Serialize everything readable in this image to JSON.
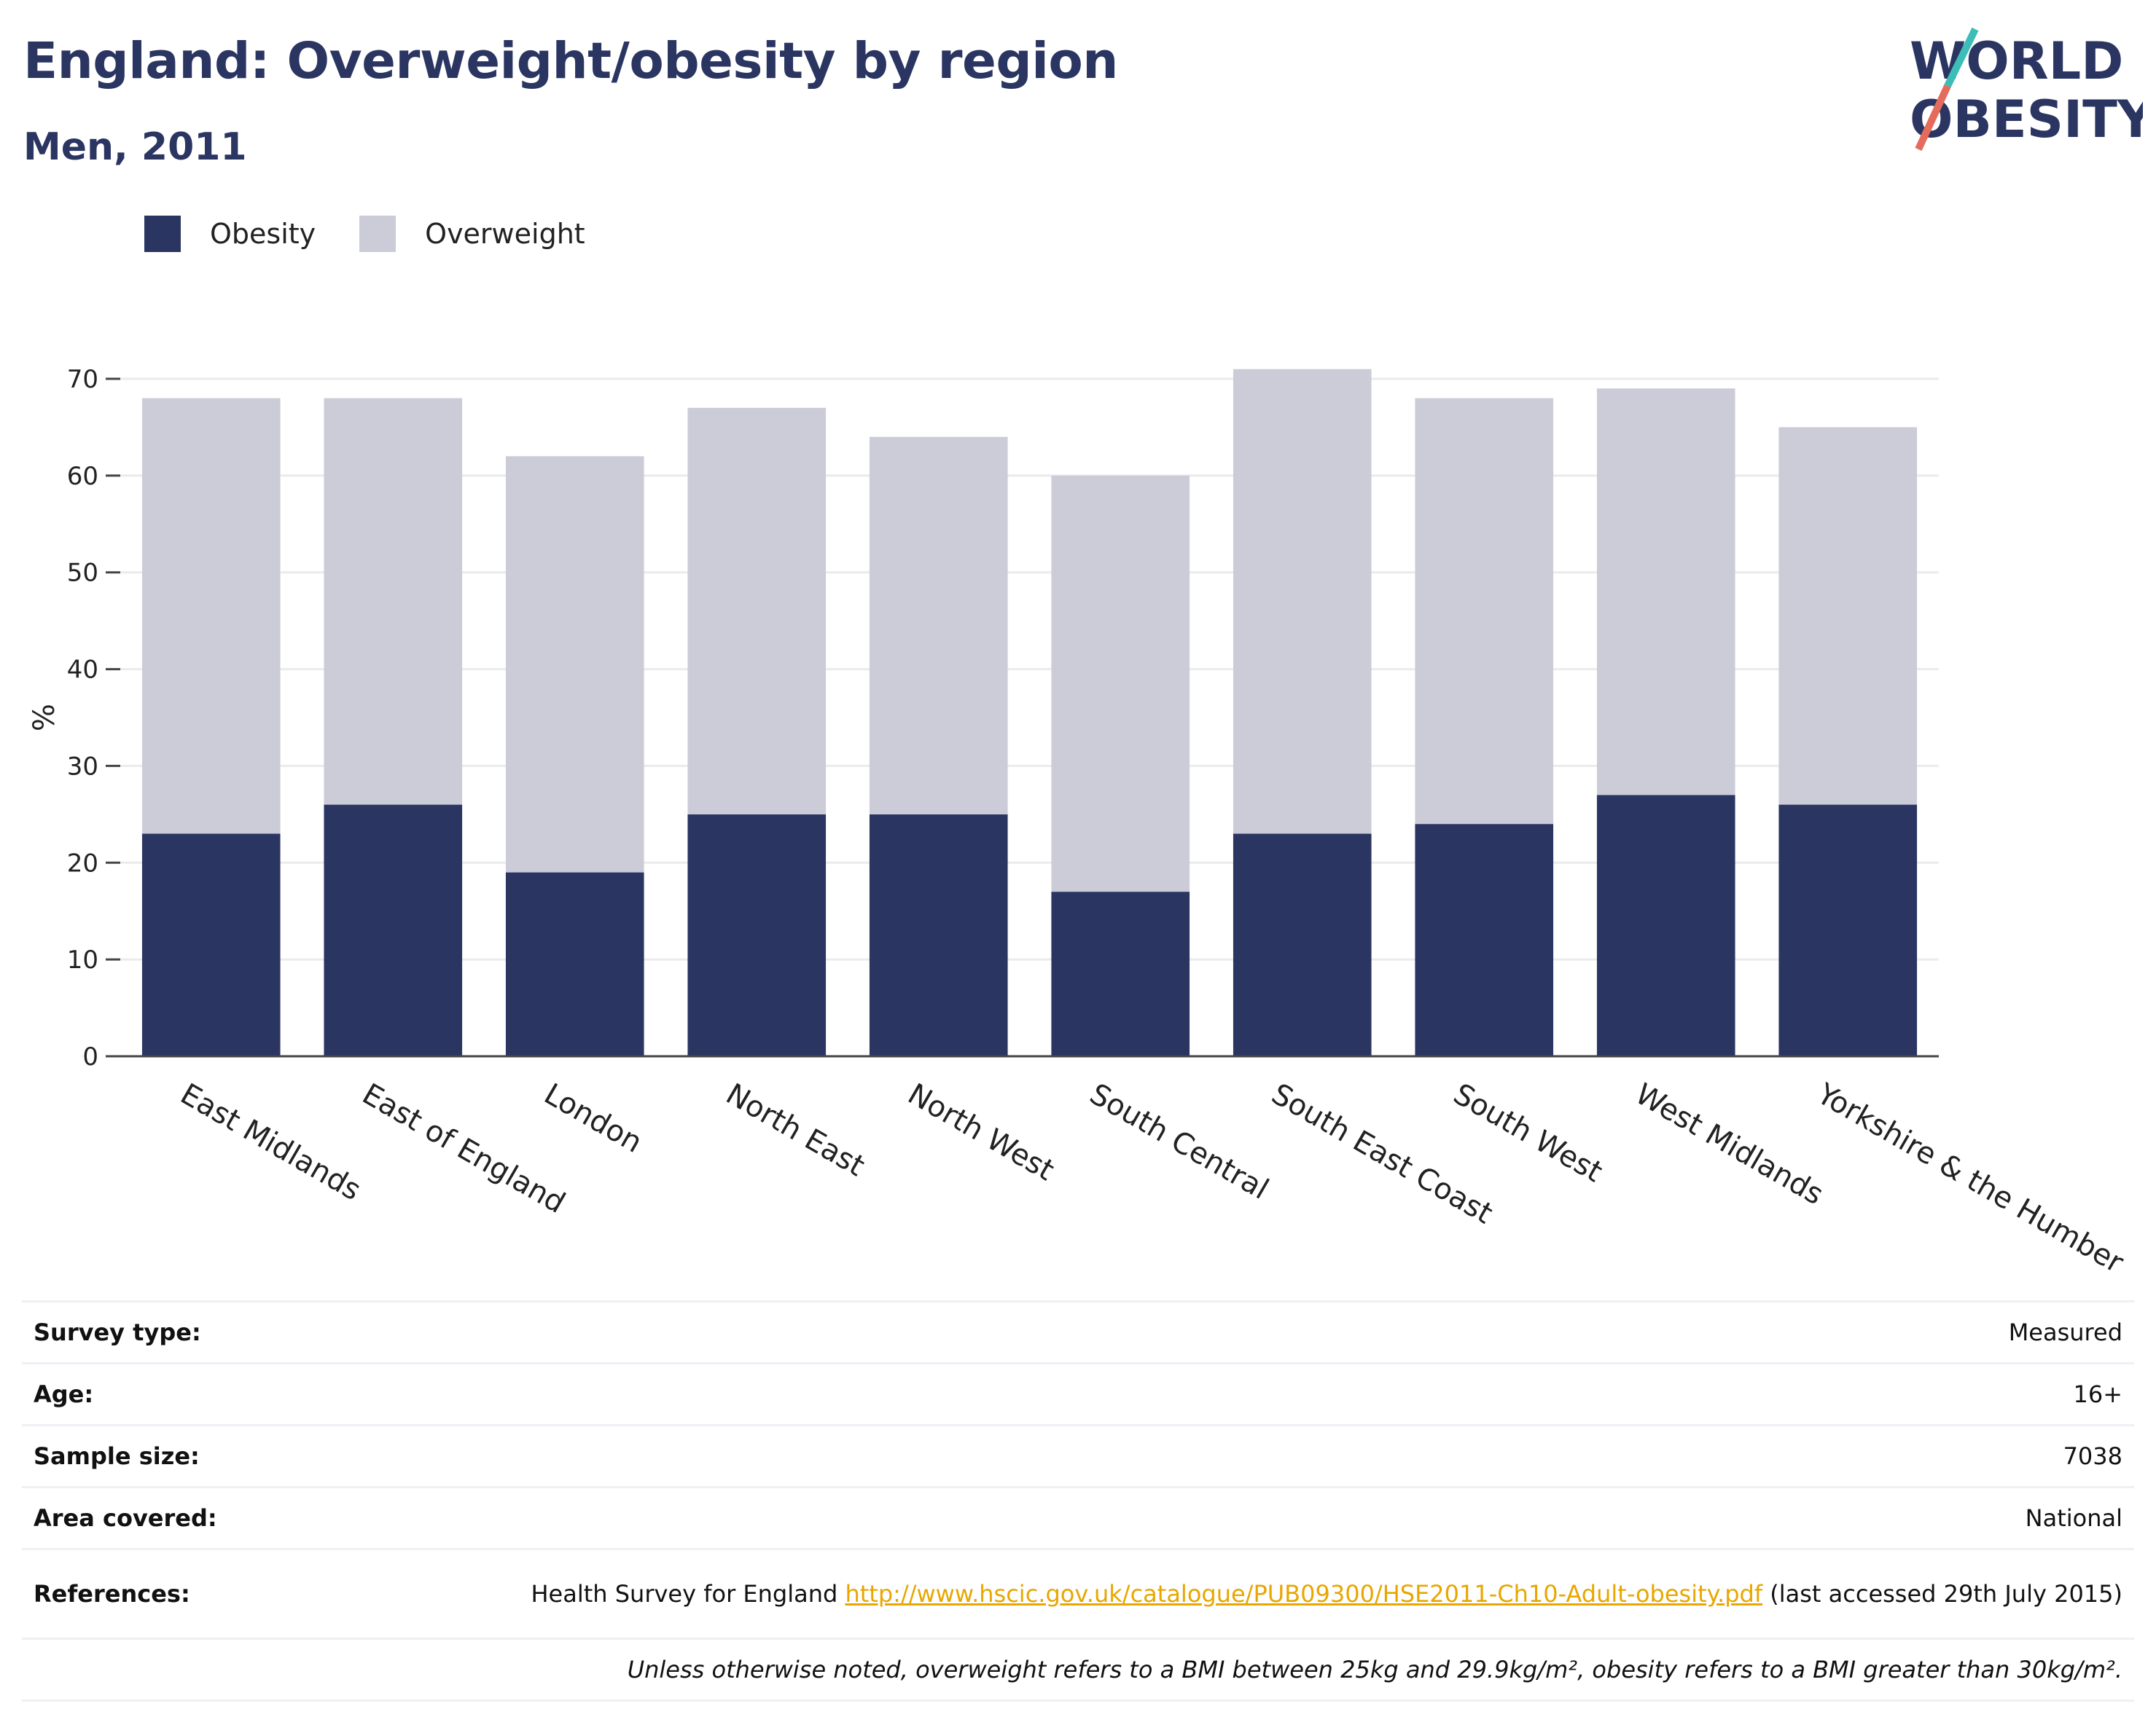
{
  "header": {
    "title": "England: Overweight/obesity by region",
    "subtitle": "Men, 2011"
  },
  "logo": {
    "line1": "WORLD",
    "line2": "OBESITY"
  },
  "colors": {
    "obesity": "#2b3561",
    "overweight": "#cbccd7",
    "logo_slash_top": "#3dbdb8",
    "logo_slash_bottom": "#e56b5d",
    "link": "#e8a700"
  },
  "chart_data": {
    "type": "bar",
    "stacked": true,
    "categories": [
      "East Midlands",
      "East of England",
      "London",
      "North East",
      "North West",
      "South Central",
      "South East Coast",
      "South West",
      "West Midlands",
      "Yorkshire & the Humber"
    ],
    "series": [
      {
        "name": "Obesity",
        "values": [
          23,
          26,
          19,
          25,
          25,
          17,
          23,
          24,
          27,
          26
        ]
      },
      {
        "name": "Overweight",
        "values": [
          45,
          42,
          43,
          42,
          39,
          43,
          48,
          44,
          42,
          39
        ]
      }
    ],
    "ylabel": "%",
    "ylim": [
      0,
      70
    ],
    "yticks": [
      0,
      10,
      20,
      30,
      40,
      50,
      60,
      70
    ],
    "grid": true,
    "legend": "top-left"
  },
  "info": {
    "rows": [
      {
        "key": "Survey type:",
        "value": "Measured"
      },
      {
        "key": "Age:",
        "value": "16+"
      },
      {
        "key": "Sample size:",
        "value": "7038"
      },
      {
        "key": "Area covered:",
        "value": "National"
      }
    ],
    "references_key": "References:",
    "references_prefix": "Health Survey for England ",
    "references_link": "http://www.hscic.gov.uk/catalogue/PUB09300/HSE2011-Ch10-Adult-obesity.pdf",
    "references_suffix": " (last accessed 29th July 2015)",
    "note": "Unless otherwise noted, overweight refers to a BMI between 25kg and 29.9kg/m², obesity refers to a BMI greater than 30kg/m²."
  }
}
